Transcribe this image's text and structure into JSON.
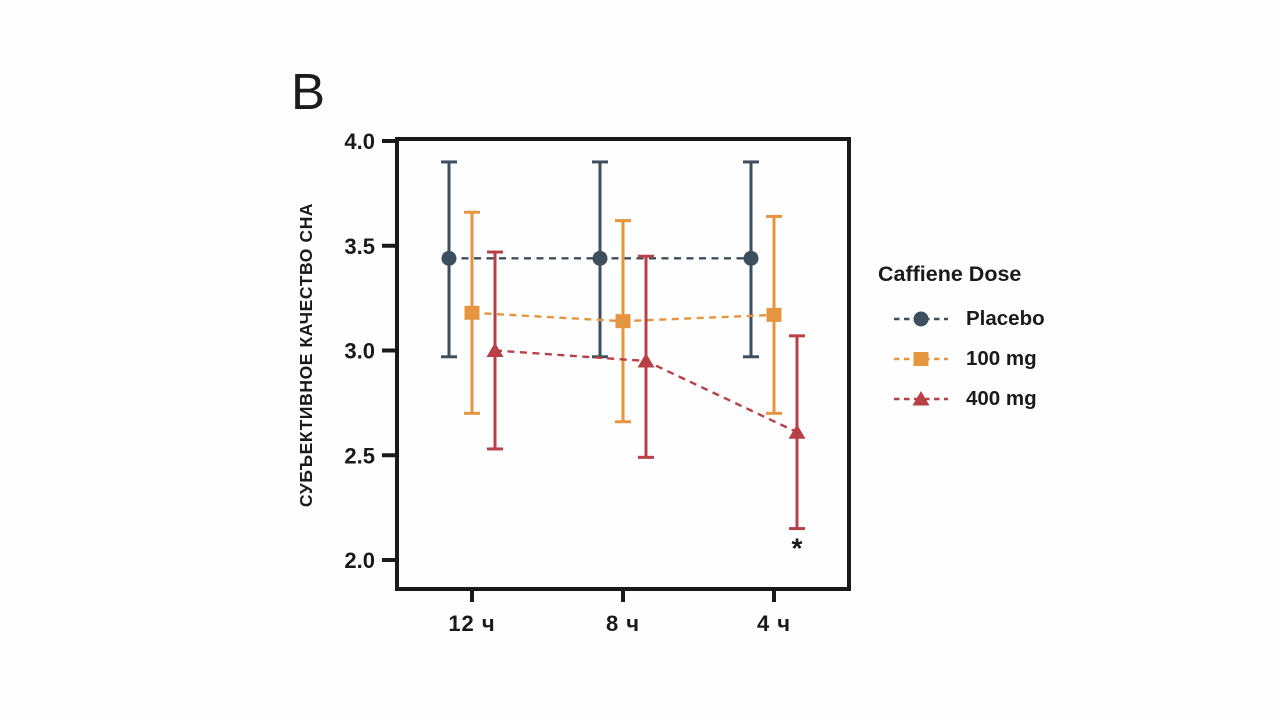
{
  "panel_label": "B",
  "background_color": "#fefefe",
  "text_color": "#1a1a1a",
  "chart_data": {
    "type": "line",
    "title": "",
    "xlabel": "",
    "ylabel": "СУБЪЕКТИВНОЕ КАЧЕСТВО СНА",
    "categories": [
      "12 ч",
      "8 ч",
      "4 ч"
    ],
    "ylim": [
      1.86,
      4.02
    ],
    "yticks": [
      4.0,
      3.5,
      3.0,
      2.5,
      2.0
    ],
    "ytick_labels": [
      "4.0",
      "3.5",
      "3.0",
      "2.5",
      "2.0"
    ],
    "grid": false,
    "frame": true,
    "legend": {
      "title": "Caffiene Dose",
      "position": "right"
    },
    "series": [
      {
        "name": "Placebo",
        "marker": "circle",
        "color": "#3d4e5c",
        "line_style": "dashed",
        "values": [
          3.44,
          3.44,
          3.44
        ],
        "err_low": [
          2.97,
          2.97,
          2.97
        ],
        "err_high": [
          3.9,
          3.9,
          3.9
        ]
      },
      {
        "name": "100 mg",
        "marker": "square",
        "color": "#e6953f",
        "line_style": "dashed",
        "values": [
          3.18,
          3.14,
          3.17
        ],
        "err_low": [
          2.7,
          2.66,
          2.7
        ],
        "err_high": [
          3.66,
          3.62,
          3.64
        ]
      },
      {
        "name": "400 mg",
        "marker": "triangle",
        "color": "#b84148",
        "line_style": "dashed",
        "values": [
          3.0,
          2.95,
          2.61
        ],
        "err_low": [
          2.53,
          2.49,
          2.15
        ],
        "err_high": [
          3.47,
          3.45,
          3.07
        ]
      }
    ],
    "annotations": [
      {
        "text": "*",
        "series": "400 mg",
        "category_index": 2,
        "y": 2.05
      }
    ]
  }
}
